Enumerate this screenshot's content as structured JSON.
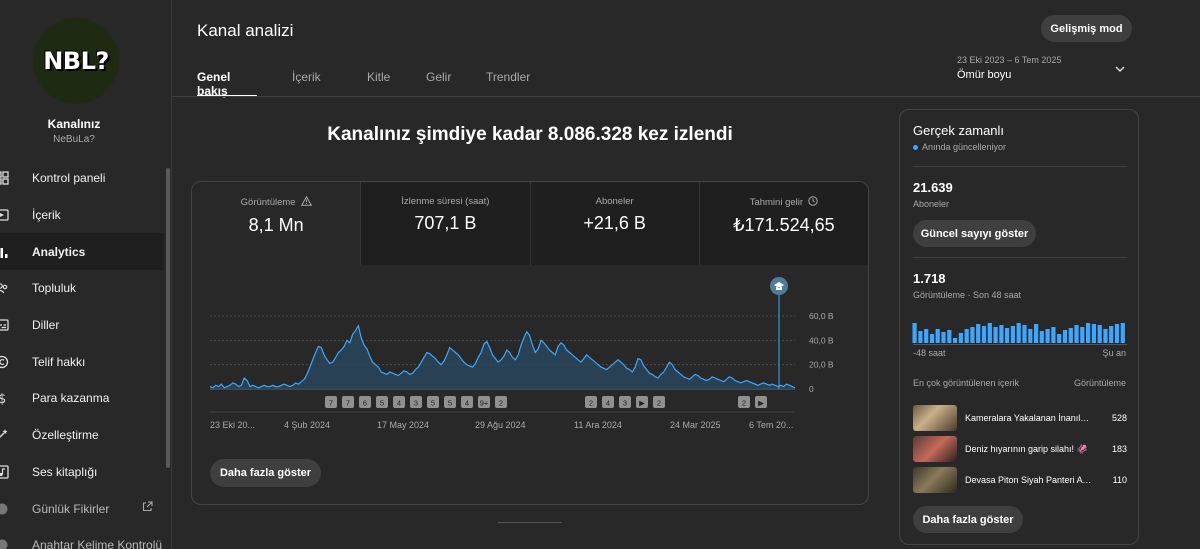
{
  "channel": {
    "avatar_text": "NBL?",
    "name": "Kanalınız",
    "handle": "NeBuLa?"
  },
  "nav": [
    {
      "label": "Kontrol paneli",
      "icon": "dashboard-icon"
    },
    {
      "label": "İçerik",
      "icon": "content-icon"
    },
    {
      "label": "Analytics",
      "icon": "analytics-icon",
      "active": true
    },
    {
      "label": "Topluluk",
      "icon": "community-icon"
    },
    {
      "label": "Diller",
      "icon": "subtitles-icon"
    },
    {
      "label": "Telif hakkı",
      "icon": "copyright-icon"
    },
    {
      "label": "Para kazanma",
      "icon": "dollar-icon"
    },
    {
      "label": "Özelleştirme",
      "icon": "magic-wand-icon"
    },
    {
      "label": "Ses kitaplığı",
      "icon": "audio-library-icon"
    },
    {
      "label": "Günlük Fikirler",
      "icon": "ideas-icon",
      "external": true
    },
    {
      "label": "Anahtar Kelime Kontrolü",
      "icon": "keyword-icon"
    }
  ],
  "header": {
    "title": "Kanal analizi",
    "advanced_button": "Gelişmiş mod",
    "tabs": [
      "Genel bakış",
      "İçerik",
      "Kitle",
      "Gelir",
      "Trendler"
    ],
    "date_range": "23 Eki 2023 – 6 Tem 2025",
    "date_label": "Ömür boyu"
  },
  "headline": "Kanalınız şimdiye kadar 8.086.328 kez izlendi",
  "metrics": [
    {
      "label": "Görüntüleme",
      "value": "8,1 Mn",
      "icon": "warning-icon"
    },
    {
      "label": "İzlenme süresi (saat)",
      "value": "707,1 B"
    },
    {
      "label": "Aboneler",
      "value": "+21,6 B"
    },
    {
      "label": "Tahmini gelir",
      "value": "₺171.524,65",
      "icon": "clock-icon"
    }
  ],
  "more_button": "Daha fazla göster",
  "chart_data": {
    "type": "area",
    "series": [
      {
        "values": [
          2,
          1,
          3,
          2,
          4,
          1,
          2,
          3,
          5,
          4,
          2,
          3,
          9,
          7,
          2,
          3,
          2,
          1,
          2,
          3,
          2,
          2,
          3,
          2,
          2,
          3,
          4,
          3,
          2,
          3,
          5,
          4,
          6,
          8,
          12,
          18,
          24,
          30,
          35,
          34,
          28,
          24,
          21,
          22,
          26,
          30,
          32,
          35,
          40,
          38,
          45,
          48,
          52,
          42,
          36,
          33,
          27,
          22,
          20,
          18,
          14,
          13,
          12,
          14,
          13,
          12,
          11,
          13,
          15,
          14,
          12,
          13,
          16,
          18,
          22,
          26,
          30,
          29,
          27,
          25,
          22,
          20,
          23,
          28,
          34,
          32,
          30,
          28,
          25,
          22,
          20,
          19,
          18,
          21,
          26,
          30,
          37,
          39,
          34,
          28,
          25,
          22,
          24,
          27,
          32,
          30,
          26,
          24,
          28,
          36,
          42,
          47,
          44,
          36,
          30,
          33,
          40,
          38,
          35,
          32,
          30,
          28,
          35,
          38,
          36,
          32,
          30,
          28,
          26,
          24,
          22,
          25,
          28,
          26,
          24,
          22,
          20,
          18,
          17,
          16,
          18,
          20,
          22,
          24,
          22,
          20,
          17,
          16,
          14,
          18,
          25,
          24,
          19,
          16,
          13,
          12,
          10,
          9,
          12,
          14,
          18,
          22,
          20,
          16,
          14,
          12,
          10,
          9,
          8,
          10,
          12,
          11,
          9,
          8,
          7,
          8,
          10,
          9,
          8,
          7,
          6,
          8,
          10,
          9,
          7,
          6,
          5,
          6,
          7,
          6,
          5,
          4,
          3,
          4,
          5,
          4,
          3,
          4,
          3,
          2,
          3,
          2,
          4,
          3,
          2,
          1
        ]
      }
    ],
    "ylim": [
      0,
      60000
    ],
    "y_ticks": [
      "60,0 B",
      "40,0 B",
      "20,0 B",
      "0"
    ],
    "x_ticks": [
      "23 Eki 20...",
      "4 Şub 2024",
      "17 May 2024",
      "29 Ağu 2024",
      "11 Ara 2024",
      "24 Mar 2025",
      "6 Tem 20..."
    ],
    "markers_left": [
      "7",
      "7",
      "6",
      "5",
      "4",
      "3",
      "5",
      "5",
      "4",
      "9+",
      "2"
    ],
    "markers_mid": [
      "2",
      "4",
      "3",
      "▶",
      "2"
    ],
    "markers_right": [
      "2",
      "▶"
    ]
  },
  "realtime": {
    "title": "Gerçek zamanlı",
    "subtitle": "Anında güncelleniyor",
    "subscribers": "21.639",
    "subscribers_label": "Aboneler",
    "live_button": "Güncel sayıyı göster",
    "views": "1.718",
    "views_label": "Görüntüleme · Son 48 saat",
    "bars": [
      20,
      12,
      14,
      9,
      14,
      11,
      13,
      5,
      10,
      14,
      16,
      19,
      17,
      20,
      16,
      18,
      15,
      17,
      20,
      18,
      14,
      19,
      12,
      14,
      16,
      9,
      13,
      15,
      18,
      16,
      20,
      19,
      18,
      14,
      17,
      19,
      20
    ],
    "axis_start": "-48 saat",
    "axis_end": "Şu an",
    "top_content_label": "En çok görüntülenen içerik",
    "top_content_metric": "Görüntüleme",
    "top_content": [
      {
        "title": "Kameralara Yakalanan İnanılmaz Anlar",
        "count": "528"
      },
      {
        "title": "Deniz hıyarının garip silahı! 🦑",
        "count": "183"
      },
      {
        "title": "Devasa Piton Siyah Panteri Avlıyor",
        "count": "110"
      }
    ],
    "more_button": "Daha fazla göster"
  }
}
